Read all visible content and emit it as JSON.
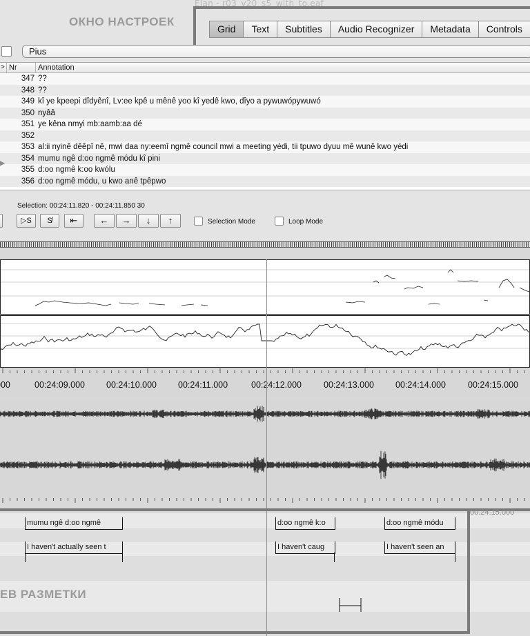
{
  "window_title_ghost": "Elan - r03_v20_s5_with_to.eaf",
  "overlay_labels": {
    "settings": "ОКНО НАСТРОЕК",
    "markup": "ЕВ РАЗМЕТКИ"
  },
  "tabs": [
    "Grid",
    "Text",
    "Subtitles",
    "Audio Recognizer",
    "Metadata",
    "Controls"
  ],
  "active_tab": "Grid",
  "tier_selector": {
    "value": "Pius"
  },
  "grid": {
    "columns": {
      "arrow": ">",
      "nr": "Nr",
      "annotation": "Annotation"
    },
    "rows": [
      {
        "nr": "347",
        "annotation": "??"
      },
      {
        "nr": "348",
        "annotation": "??"
      },
      {
        "nr": "349",
        "annotation": "kî ye kpeepi dîdyênî, Lv:ee kpê u mênê yoo kî yedê  kwo, dîyo a pywuwópywuwó"
      },
      {
        "nr": "350",
        "annotation": "nyââ"
      },
      {
        "nr": "351",
        "annotation": "ye kêna nmyi mb:aamb:aa dé"
      },
      {
        "nr": "352",
        "annotation": ""
      },
      {
        "nr": "353",
        "annotation": "al:ii nyinê dêêpî nê, mwi daa ny:eemî ngmê council mwi a  meeting yédi, tii tpuwo dyuu mê wunê kwo yédi"
      },
      {
        "nr": "354",
        "annotation": "mumu ngê d:oo ngmê módu kî pini"
      },
      {
        "nr": "355",
        "annotation": "d:oo ngmê k:oo kwólu"
      },
      {
        "nr": "356",
        "annotation": "d:oo ngmê módu, u kwo anê tpêpwo"
      }
    ]
  },
  "selection_text": "Selection: 00:24:11.820 - 00:24:11.850  30",
  "controls": {
    "buttons": [
      "▷S",
      "S̸",
      "⇤",
      "←",
      "→",
      "↓",
      "↑"
    ],
    "selection_mode_label": "Selection Mode",
    "loop_mode_label": "Loop Mode"
  },
  "timeline": {
    "labels": [
      "000",
      "00:24:09.000",
      "00:24:10.000",
      "00:24:11.000",
      "00:24:12.000",
      "00:24:13.000",
      "00:24:14.000",
      "00:24:15.000"
    ],
    "ghost_label": "00:24:15.000"
  },
  "tier_annotations": {
    "row1": [
      "mumu ngê d:oo ngmê",
      "d:oo ngmê k:o",
      "d:oo ngmê módu"
    ],
    "row2": [
      "I haven't actually seen t",
      "I haven't caug",
      "I haven't seen an"
    ]
  },
  "colors": {
    "frame": "#7b7b7b",
    "waveform": "#111111",
    "background": "#e4e4e4"
  }
}
